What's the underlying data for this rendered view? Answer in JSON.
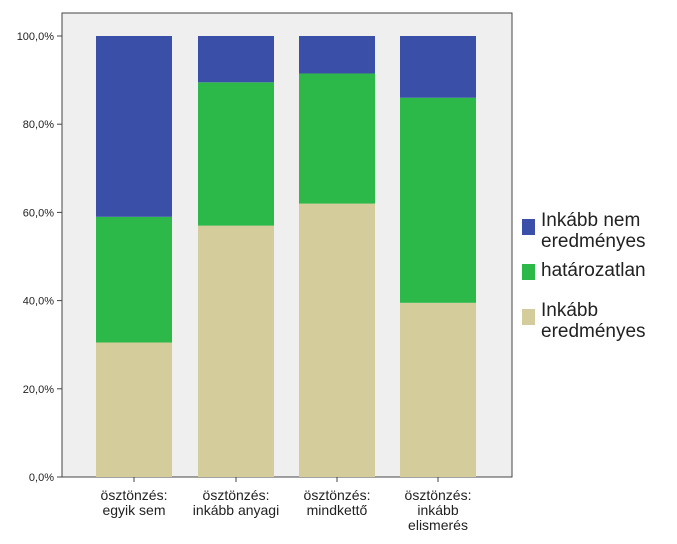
{
  "chart_data": {
    "type": "bar",
    "stacked": true,
    "percent": true,
    "categories": [
      [
        "ösztönzés:",
        "egyik sem"
      ],
      [
        "ösztönzés:",
        "inkább anyagi"
      ],
      [
        "ösztönzés:",
        "mindkettő"
      ],
      [
        "ösztönzés:",
        "inkább",
        "elismerés"
      ]
    ],
    "series": [
      {
        "name_lines": [
          "Inkább",
          "eredményes"
        ],
        "color": "#d4cc9a",
        "values": [
          30.5,
          57.0,
          62.0,
          39.5
        ]
      },
      {
        "name_lines": [
          "határozatlan"
        ],
        "color": "#2db84a",
        "values": [
          28.5,
          32.5,
          29.5,
          46.5
        ]
      },
      {
        "name_lines": [
          "Inkább nem",
          "eredményes"
        ],
        "color": "#3a50a8",
        "values": [
          41.0,
          10.5,
          8.5,
          14.0
        ]
      }
    ],
    "ylim": [
      0,
      100
    ],
    "yticks": [
      0,
      20,
      40,
      60,
      80,
      100
    ],
    "ytick_labels": [
      "0,0%",
      "20,0%",
      "40,0%",
      "60,0%",
      "80,0%",
      "100,0%"
    ],
    "legend_placement": "right",
    "legend_order": [
      2,
      1,
      0
    ],
    "grid": false,
    "plot_background": "#efefef"
  }
}
